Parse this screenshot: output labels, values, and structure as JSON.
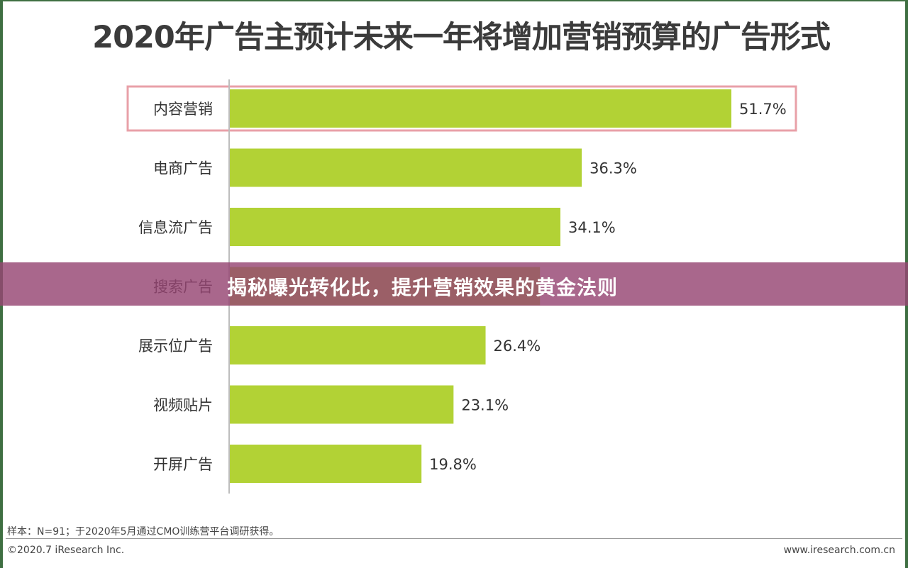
{
  "chart_data": {
    "type": "bar",
    "orientation": "horizontal",
    "title": "2020年广告主预计未来一年将增加营销预算的广告形式",
    "categories": [
      "内容营销",
      "电商广告",
      "信息流广告",
      "搜索广告",
      "展示位广告",
      "视频贴片",
      "开屏广告"
    ],
    "values": [
      51.7,
      36.3,
      34.1,
      32.0,
      26.4,
      23.1,
      19.8
    ],
    "value_labels": [
      "51.7%",
      "36.3%",
      "34.1%",
      "",
      "26.4%",
      "23.1%",
      "19.8%"
    ],
    "xlim": [
      0,
      60
    ],
    "highlighted_category": "内容营销",
    "bar_color": "#b2d235",
    "highlight_color": "#e8a0a8",
    "axis_color": "#bdbdbd"
  },
  "footer": {
    "note": "样本：N=91；于2020年5月通过CMO训练营平台调研获得。",
    "copyright": "©2020.7 iResearch Inc.",
    "website": "www.iresearch.com.cn"
  },
  "overlay": {
    "banner_text": "揭秘曝光转化比，提升营销效果的黄金法则",
    "banner_color": "#9a4a78"
  }
}
